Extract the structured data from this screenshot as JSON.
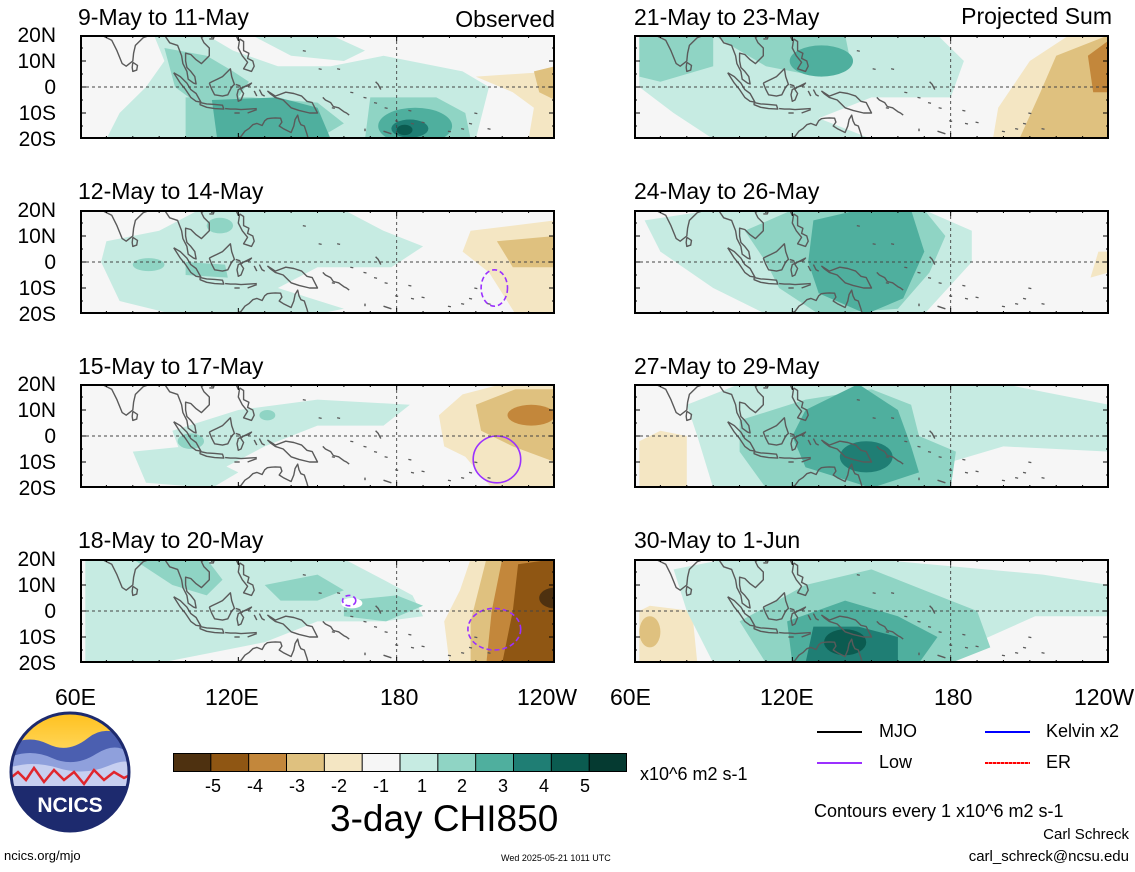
{
  "headers": {
    "left": "Observed",
    "right": "Projected Sum"
  },
  "panels": {
    "left": [
      {
        "title": "9-May to 11-May"
      },
      {
        "title": "12-May to 14-May"
      },
      {
        "title": "15-May to 17-May"
      },
      {
        "title": "18-May to 20-May"
      }
    ],
    "right": [
      {
        "title": "21-May to 23-May"
      },
      {
        "title": "24-May to 26-May"
      },
      {
        "title": "27-May to 29-May"
      },
      {
        "title": "30-May to 1-Jun"
      }
    ]
  },
  "lat_labels": [
    "20N",
    "10N",
    "0",
    "10S",
    "20S"
  ],
  "lon_labels": {
    "left": [
      "60E",
      "120E",
      "180",
      "120W"
    ],
    "right": [
      "60E",
      "120E",
      "180",
      "120W"
    ]
  },
  "colorbar": {
    "labels": [
      "-5",
      "-4",
      "-3",
      "-2",
      "-1",
      "1",
      "2",
      "3",
      "4",
      "5"
    ],
    "colors": [
      "#4e3110",
      "#8f5613",
      "#c3873b",
      "#dfc17f",
      "#f4e6c3",
      "#f6f6f6",
      "#c6ebe2",
      "#8fd4c4",
      "#4faf9e",
      "#1f7e74",
      "#0b5b50",
      "#053a31"
    ],
    "units": "x10^6 m2 s-1",
    "title": "3-day CHI850"
  },
  "legend": {
    "items": [
      {
        "label": "MJO",
        "color": "#000000"
      },
      {
        "label": "Kelvin x2",
        "color": "#0000ff"
      },
      {
        "label": "Low",
        "color": "#9b30ff"
      },
      {
        "label": "ER",
        "color": "#ff0000"
      }
    ],
    "contour_note": "Contours every 1 x10^6 m2 s-1"
  },
  "credits": {
    "author": "Carl Schreck",
    "email": "carl_schreck@ncsu.edu",
    "site": "ncics.org/mjo",
    "timestamp": "Wed 2025-05-21 1011 UTC",
    "logo_text": "NCICS"
  }
}
